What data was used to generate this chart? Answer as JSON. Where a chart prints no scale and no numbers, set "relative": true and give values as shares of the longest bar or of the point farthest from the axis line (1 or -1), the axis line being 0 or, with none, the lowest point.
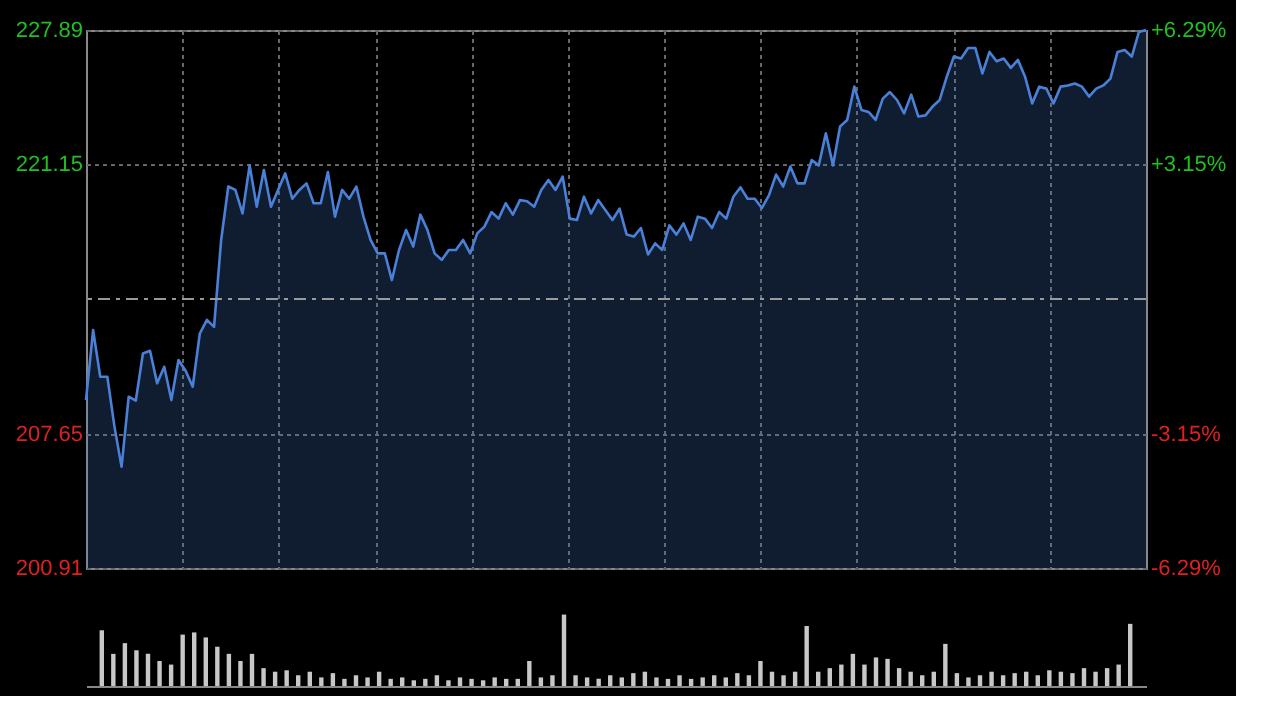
{
  "chart_data": [
    {
      "type": "area",
      "ylim": [
        200.91,
        227.89
      ],
      "yticks": [
        200.91,
        207.65,
        221.15,
        227.89
      ],
      "y2lim": [
        -6.29,
        6.29
      ],
      "y2ticks": [
        {
          "value": -6.29,
          "label": "-6.29%"
        },
        {
          "value": -3.15,
          "label": "-3.15%"
        },
        {
          "value": 3.15,
          "label": "+3.15%"
        },
        {
          "value": 6.29,
          "label": "+6.29%"
        }
      ],
      "tick_labels": "y",
      "grid": true,
      "categories": [
        null,
        null,
        null,
        null,
        null,
        null,
        null,
        null,
        null,
        null,
        null,
        null,
        null,
        null,
        null,
        null,
        null,
        null,
        null,
        null,
        null,
        null,
        null,
        null,
        null,
        null,
        null,
        null,
        null,
        null,
        null,
        null,
        null,
        null,
        null,
        null,
        null,
        null,
        null,
        null,
        null,
        null,
        null,
        null,
        null,
        null,
        null,
        null,
        null,
        null,
        null,
        null,
        null,
        null,
        null,
        null,
        null,
        null,
        null,
        null,
        null,
        null,
        null,
        null,
        null,
        null,
        null,
        null,
        null,
        null,
        null,
        null,
        null,
        null,
        null,
        null,
        null,
        null,
        null,
        null,
        null,
        null,
        null,
        null,
        null,
        null,
        null,
        null,
        null,
        null,
        null,
        null,
        null,
        null,
        null,
        null,
        null,
        null,
        null,
        null,
        null,
        null,
        null,
        null,
        null,
        null,
        null,
        null,
        null,
        null,
        null,
        null,
        null,
        null,
        null,
        null,
        null,
        null,
        null,
        null,
        null,
        null,
        null,
        null,
        null,
        null,
        null,
        null,
        null,
        null,
        null,
        null,
        null,
        null,
        null,
        null,
        null,
        null,
        null,
        null,
        null,
        null,
        null,
        null,
        null,
        null,
        null,
        null,
        null,
        null
      ],
      "ref_lines": [
        {
          "axis": "y2",
          "value": 0,
          "label": null,
          "color": "#9a9a9a",
          "line_style": "dashed"
        }
      ],
      "series": [
        {
          "color": "#4a80d8",
          "values": [
            209.33,
            212.84,
            210.5,
            210.5,
            208.0,
            205.99,
            209.5,
            209.3,
            211.67,
            211.8,
            210.17,
            211.0,
            209.33,
            211.34,
            210.8,
            210.0,
            212.67,
            213.35,
            213.0,
            217.36,
            220.04,
            219.87,
            218.69,
            221.1,
            219.03,
            220.87,
            219.03,
            219.87,
            220.7,
            219.43,
            219.87,
            220.2,
            219.2,
            219.2,
            220.77,
            218.53,
            219.87,
            219.43,
            220.04,
            218.53,
            217.36,
            216.69,
            216.69,
            215.35,
            216.86,
            217.86,
            217.03,
            218.63,
            217.86,
            216.69,
            216.36,
            216.86,
            216.86,
            217.36,
            216.69,
            217.69,
            218.03,
            218.76,
            218.43,
            219.2,
            218.63,
            219.36,
            219.3,
            219.03,
            219.87,
            220.37,
            219.87,
            220.54,
            218.43,
            218.36,
            219.53,
            218.69,
            219.36,
            218.86,
            218.36,
            218.93,
            217.63,
            217.53,
            217.96,
            216.63,
            217.19,
            216.86,
            218.09,
            217.63,
            218.19,
            217.36,
            218.53,
            218.43,
            217.96,
            218.76,
            218.43,
            219.53,
            220.0,
            219.43,
            219.43,
            218.96,
            219.6,
            220.64,
            220.04,
            221.04,
            220.2,
            220.2,
            221.37,
            221.1,
            222.71,
            221.1,
            223.05,
            223.38,
            225.05,
            223.88,
            223.78,
            223.38,
            224.45,
            224.78,
            224.38,
            223.71,
            224.65,
            223.55,
            223.61,
            224.05,
            224.38,
            225.55,
            226.56,
            226.46,
            226.99,
            226.99,
            225.71,
            226.79,
            226.32,
            226.46,
            225.99,
            226.39,
            225.55,
            224.21,
            225.05,
            224.95,
            224.21,
            225.05,
            225.11,
            225.21,
            225.05,
            224.55,
            224.95,
            225.11,
            225.45,
            226.79,
            226.89,
            226.56,
            227.79,
            227.89
          ]
        }
      ]
    },
    {
      "type": "bar",
      "relative": true,
      "color": "#c8c8c8",
      "categories": [
        null,
        null,
        null,
        null,
        null,
        null,
        null,
        null,
        null,
        null,
        null,
        null,
        null,
        null,
        null,
        null,
        null,
        null,
        null,
        null,
        null,
        null,
        null,
        null,
        null,
        null,
        null,
        null,
        null,
        null,
        null,
        null,
        null,
        null,
        null,
        null,
        null,
        null,
        null,
        null,
        null,
        null,
        null,
        null,
        null,
        null,
        null,
        null,
        null,
        null,
        null,
        null,
        null,
        null,
        null,
        null,
        null,
        null,
        null,
        null,
        null,
        null,
        null,
        null,
        null,
        null,
        null,
        null,
        null,
        null,
        null,
        null,
        null,
        null,
        null,
        null,
        null,
        null,
        null,
        null,
        null,
        null,
        null,
        null,
        null,
        null,
        null,
        null,
        null,
        null
      ],
      "values": [
        0.78,
        0.45,
        0.6,
        0.5,
        0.45,
        0.35,
        0.3,
        0.72,
        0.75,
        0.68,
        0.55,
        0.45,
        0.35,
        0.45,
        0.25,
        0.2,
        0.22,
        0.15,
        0.2,
        0.12,
        0.18,
        0.1,
        0.15,
        0.12,
        0.2,
        0.1,
        0.12,
        0.08,
        0.1,
        0.15,
        0.08,
        0.12,
        0.1,
        0.08,
        0.12,
        0.1,
        0.1,
        0.35,
        0.12,
        0.15,
        1.0,
        0.15,
        0.12,
        0.1,
        0.15,
        0.12,
        0.18,
        0.2,
        0.12,
        0.1,
        0.15,
        0.1,
        0.12,
        0.15,
        0.12,
        0.18,
        0.15,
        0.35,
        0.2,
        0.15,
        0.2,
        0.84,
        0.2,
        0.25,
        0.3,
        0.45,
        0.3,
        0.4,
        0.38,
        0.25,
        0.2,
        0.15,
        0.2,
        0.59,
        0.18,
        0.12,
        0.15,
        0.2,
        0.15,
        0.18,
        0.2,
        0.15,
        0.22,
        0.2,
        0.18,
        0.25,
        0.2,
        0.25,
        0.3,
        0.87
      ]
    }
  ]
}
